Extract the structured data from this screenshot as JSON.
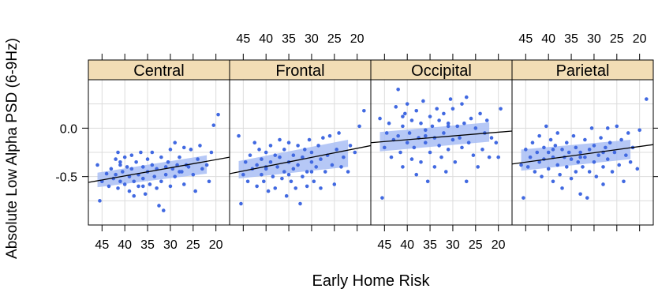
{
  "chart_data": {
    "type": "scatter",
    "xlabel": "Early Home Risk",
    "ylabel": "Absolute Low Alpha PSD (6-9Hz)",
    "xlim": [
      48,
      17
    ],
    "ylim": [
      -1.0,
      0.5
    ],
    "x_ticks": [
      "45",
      "40",
      "35",
      "30",
      "25",
      "20"
    ],
    "x_tick_values": [
      45,
      40,
      35,
      30,
      25,
      20
    ],
    "y_ticks": [
      "0.0",
      "-0.5"
    ],
    "y_tick_values": [
      0.0,
      -0.5
    ],
    "grid": true,
    "strip_color": "#F2DDB5",
    "point_color": "#4169E1",
    "band_color": "#A9BEF4",
    "line_color": "#000000",
    "panels": [
      {
        "name": "Central",
        "fit": {
          "x1": 48,
          "y1": -0.56,
          "x2": 17,
          "y2": -0.3
        },
        "band": {
          "x1": 46,
          "x2": 22,
          "upper_start": -0.46,
          "upper_end": -0.28,
          "lower_start": -0.61,
          "lower_end": -0.47
        },
        "points": [
          [
            46,
            -0.38
          ],
          [
            45.5,
            -0.75
          ],
          [
            45,
            -0.55
          ],
          [
            44,
            -0.47
          ],
          [
            43.5,
            -0.6
          ],
          [
            43,
            -0.42
          ],
          [
            42.5,
            -0.52
          ],
          [
            42,
            -0.32
          ],
          [
            42,
            -0.48
          ],
          [
            41.5,
            -0.25
          ],
          [
            41.5,
            -0.62
          ],
          [
            41,
            -0.38
          ],
          [
            41,
            -0.55
          ],
          [
            40.5,
            -0.45
          ],
          [
            40,
            -0.3
          ],
          [
            40,
            -0.58
          ],
          [
            39.5,
            -0.4
          ],
          [
            39,
            -0.65
          ],
          [
            39,
            -0.5
          ],
          [
            38.5,
            -0.28
          ],
          [
            38.5,
            -0.42
          ],
          [
            38,
            -0.7
          ],
          [
            38,
            -0.55
          ],
          [
            37.5,
            -0.35
          ],
          [
            37,
            -0.48
          ],
          [
            37,
            -0.6
          ],
          [
            36.5,
            -0.25
          ],
          [
            36,
            -0.4
          ],
          [
            36,
            -0.52
          ],
          [
            35.5,
            -0.68
          ],
          [
            35,
            -0.32
          ],
          [
            35,
            -0.45
          ],
          [
            34.5,
            -0.58
          ],
          [
            34,
            -0.38
          ],
          [
            34,
            -0.25
          ],
          [
            33.5,
            -0.5
          ],
          [
            33,
            -0.62
          ],
          [
            33,
            -0.42
          ],
          [
            32.5,
            -0.8
          ],
          [
            32,
            -0.3
          ],
          [
            32,
            -0.55
          ],
          [
            31.5,
            -0.85
          ],
          [
            31,
            -0.4
          ],
          [
            31,
            -0.48
          ],
          [
            30.5,
            -0.35
          ],
          [
            30,
            -0.22
          ],
          [
            30,
            -0.6
          ],
          [
            29.5,
            -0.42
          ],
          [
            29,
            -0.15
          ],
          [
            29,
            -0.5
          ],
          [
            28.5,
            -0.38
          ],
          [
            28,
            -0.3
          ],
          [
            27.5,
            -0.45
          ],
          [
            27,
            -0.2
          ],
          [
            27,
            -0.58
          ],
          [
            26.5,
            -0.38
          ],
          [
            26,
            -0.4
          ],
          [
            25.5,
            -0.22
          ],
          [
            25,
            -0.48
          ],
          [
            24.5,
            -0.65
          ],
          [
            24,
            -0.32
          ],
          [
            23.5,
            -0.18
          ],
          [
            23,
            -0.42
          ],
          [
            22,
            -0.38
          ],
          [
            21.5,
            -0.55
          ],
          [
            21,
            -0.25
          ],
          [
            20.5,
            0.03
          ],
          [
            19.5,
            0.14
          ],
          [
            41,
            -0.35
          ],
          [
            36,
            -0.6
          ],
          [
            28,
            -0.45
          ]
        ]
      },
      {
        "name": "Frontal",
        "fit": {
          "x1": 48,
          "y1": -0.47,
          "x2": 17,
          "y2": -0.18
        },
        "band": {
          "x1": 46,
          "x2": 22,
          "upper_start": -0.34,
          "upper_end": -0.12,
          "lower_start": -0.52,
          "lower_end": -0.4
        },
        "points": [
          [
            46,
            -0.08
          ],
          [
            45.5,
            -0.78
          ],
          [
            45,
            -0.48
          ],
          [
            44.5,
            -0.35
          ],
          [
            44,
            -0.55
          ],
          [
            43.5,
            -0.28
          ],
          [
            43,
            -0.42
          ],
          [
            42.5,
            -0.15
          ],
          [
            42,
            -0.6
          ],
          [
            42,
            -0.38
          ],
          [
            41.5,
            -0.22
          ],
          [
            41,
            -0.48
          ],
          [
            41,
            -0.32
          ],
          [
            40.5,
            -0.55
          ],
          [
            40,
            -0.25
          ],
          [
            40,
            -0.4
          ],
          [
            39.5,
            -0.65
          ],
          [
            39,
            -0.18
          ],
          [
            39,
            -0.35
          ],
          [
            38.5,
            -0.5
          ],
          [
            38,
            -0.28
          ],
          [
            38,
            -0.62
          ],
          [
            37.5,
            -0.4
          ],
          [
            37,
            -0.12
          ],
          [
            37,
            -0.3
          ],
          [
            36.5,
            -0.52
          ],
          [
            36,
            -0.22
          ],
          [
            36,
            -0.45
          ],
          [
            35.5,
            -0.7
          ],
          [
            35,
            -0.35
          ],
          [
            35,
            -0.15
          ],
          [
            34.5,
            -0.55
          ],
          [
            34,
            -0.28
          ],
          [
            34,
            -0.42
          ],
          [
            33.5,
            -0.62
          ],
          [
            33,
            -0.18
          ],
          [
            33,
            -0.38
          ],
          [
            32.5,
            -0.78
          ],
          [
            32,
            -0.3
          ],
          [
            32,
            -0.5
          ],
          [
            31.5,
            -0.22
          ],
          [
            31,
            -0.45
          ],
          [
            31,
            -0.6
          ],
          [
            30.5,
            -0.12
          ],
          [
            30,
            -0.35
          ],
          [
            30,
            -0.25
          ],
          [
            29.5,
            -0.55
          ],
          [
            29,
            -0.4
          ],
          [
            28.5,
            -0.18
          ],
          [
            28,
            -0.32
          ],
          [
            28,
            -0.62
          ],
          [
            27.5,
            -0.1
          ],
          [
            27,
            -0.45
          ],
          [
            26.5,
            -0.28
          ],
          [
            26,
            -0.08
          ],
          [
            25.5,
            -0.38
          ],
          [
            25,
            -0.58
          ],
          [
            24.5,
            -0.22
          ],
          [
            24,
            -0.05
          ],
          [
            23.5,
            -0.4
          ],
          [
            23,
            -0.3
          ],
          [
            22,
            -0.45
          ],
          [
            21.5,
            -0.18
          ],
          [
            20.5,
            -0.25
          ],
          [
            19.5,
            0.02
          ],
          [
            18.5,
            0.18
          ],
          [
            40,
            -0.42
          ],
          [
            35,
            -0.48
          ],
          [
            30,
            -0.45
          ]
        ]
      },
      {
        "name": "Occipital",
        "fit": {
          "x1": 48,
          "y1": -0.15,
          "x2": 17,
          "y2": -0.03
        },
        "band": {
          "x1": 46,
          "x2": 22,
          "upper_start": -0.04,
          "upper_end": 0.06,
          "lower_start": -0.24,
          "lower_end": -0.14
        },
        "points": [
          [
            46,
            0.1
          ],
          [
            45.5,
            -0.72
          ],
          [
            45,
            -0.2
          ],
          [
            44.5,
            -0.05
          ],
          [
            44,
            0.05
          ],
          [
            43.5,
            -0.3
          ],
          [
            43,
            -0.12
          ],
          [
            42.5,
            0.22
          ],
          [
            42,
            -0.08
          ],
          [
            42,
            0.4
          ],
          [
            41.5,
            -0.25
          ],
          [
            41,
            0.02
          ],
          [
            41,
            -0.4
          ],
          [
            40.5,
            0.15
          ],
          [
            40,
            -0.15
          ],
          [
            40,
            0.25
          ],
          [
            39.5,
            -0.05
          ],
          [
            39,
            -0.32
          ],
          [
            39,
            0.08
          ],
          [
            38.5,
            -0.2
          ],
          [
            38,
            0.18
          ],
          [
            38,
            -0.48
          ],
          [
            37.5,
            -0.1
          ],
          [
            37,
            0.05
          ],
          [
            37,
            -0.35
          ],
          [
            36.5,
            0.28
          ],
          [
            36,
            -0.15
          ],
          [
            36,
            -0.02
          ],
          [
            35.5,
            -0.55
          ],
          [
            35,
            0.12
          ],
          [
            35,
            -0.25
          ],
          [
            34.5,
            0.02
          ],
          [
            34,
            -0.4
          ],
          [
            34,
            -0.1
          ],
          [
            33.5,
            0.2
          ],
          [
            33,
            -0.18
          ],
          [
            33,
            0.08
          ],
          [
            32.5,
            -0.3
          ],
          [
            32,
            0.15
          ],
          [
            32,
            -0.05
          ],
          [
            31.5,
            -0.45
          ],
          [
            31,
            0.05
          ],
          [
            31,
            -0.22
          ],
          [
            30.5,
            0.3
          ],
          [
            30,
            -0.12
          ],
          [
            30,
            0.2
          ],
          [
            29.5,
            -0.35
          ],
          [
            29,
            0.02
          ],
          [
            28.5,
            -0.1
          ],
          [
            28,
            0.25
          ],
          [
            28,
            -0.2
          ],
          [
            27.5,
            0.05
          ],
          [
            27,
            -0.55
          ],
          [
            27,
            0.32
          ],
          [
            26.5,
            -0.15
          ],
          [
            26,
            0.1
          ],
          [
            25.5,
            -0.28
          ],
          [
            25,
            0.0
          ],
          [
            24.5,
            -0.4
          ],
          [
            24,
            0.15
          ],
          [
            23.5,
            -0.22
          ],
          [
            23,
            -0.05
          ],
          [
            22.5,
            0.08
          ],
          [
            22,
            -0.3
          ],
          [
            21.5,
            -0.1
          ],
          [
            20.5,
            -0.15
          ],
          [
            20,
            -0.3
          ],
          [
            19.5,
            0.2
          ],
          [
            41,
            0.12
          ],
          [
            36,
            -0.08
          ],
          [
            31,
            0.02
          ]
        ]
      },
      {
        "name": "Parietal",
        "fit": {
          "x1": 48,
          "y1": -0.37,
          "x2": 17,
          "y2": -0.17
        },
        "band": {
          "x1": 46,
          "x2": 22,
          "upper_start": -0.22,
          "upper_end": -0.12,
          "lower_start": -0.44,
          "lower_end": -0.32
        },
        "points": [
          [
            46,
            -0.38
          ],
          [
            45.5,
            -0.72
          ],
          [
            45,
            -0.22
          ],
          [
            44.5,
            -0.4
          ],
          [
            44,
            -0.3
          ],
          [
            43.5,
            -0.15
          ],
          [
            43,
            -0.45
          ],
          [
            42.5,
            -0.25
          ],
          [
            42,
            -0.35
          ],
          [
            42,
            -0.08
          ],
          [
            41.5,
            -0.5
          ],
          [
            41,
            -0.2
          ],
          [
            41,
            -0.32
          ],
          [
            40.5,
            0.02
          ],
          [
            40,
            -0.42
          ],
          [
            40,
            -0.25
          ],
          [
            39.5,
            -0.12
          ],
          [
            39,
            -0.55
          ],
          [
            39,
            -0.3
          ],
          [
            38.5,
            -0.18
          ],
          [
            38,
            -0.38
          ],
          [
            38,
            -0.05
          ],
          [
            37.5,
            -0.48
          ],
          [
            37,
            -0.22
          ],
          [
            37,
            -0.62
          ],
          [
            36.5,
            -0.3
          ],
          [
            36,
            -0.15
          ],
          [
            36,
            -0.4
          ],
          [
            35.5,
            -0.25
          ],
          [
            35,
            -0.52
          ],
          [
            35,
            -0.32
          ],
          [
            34.5,
            -0.08
          ],
          [
            34,
            -0.45
          ],
          [
            34,
            -0.2
          ],
          [
            33.5,
            -0.35
          ],
          [
            33,
            -0.68
          ],
          [
            33,
            -0.25
          ],
          [
            32.5,
            -0.4
          ],
          [
            32,
            -0.12
          ],
          [
            32,
            -0.3
          ],
          [
            31.5,
            -0.72
          ],
          [
            31,
            -0.22
          ],
          [
            31,
            -0.45
          ],
          [
            30.5,
            0.0
          ],
          [
            30,
            -0.35
          ],
          [
            30,
            -0.18
          ],
          [
            29.5,
            -0.5
          ],
          [
            29,
            -0.28
          ],
          [
            28.5,
            -0.1
          ],
          [
            28,
            -0.4
          ],
          [
            28,
            -0.58
          ],
          [
            27.5,
            -0.2
          ],
          [
            27,
            0.0
          ],
          [
            27,
            -0.32
          ],
          [
            26.5,
            -0.15
          ],
          [
            26,
            -0.45
          ],
          [
            25.5,
            -0.25
          ],
          [
            25,
            0.02
          ],
          [
            24.5,
            -0.38
          ],
          [
            24,
            -0.12
          ],
          [
            23.5,
            -0.55
          ],
          [
            23,
            -0.28
          ],
          [
            22.5,
            -0.05
          ],
          [
            22,
            -0.35
          ],
          [
            21.5,
            -0.2
          ],
          [
            20.5,
            -0.42
          ],
          [
            20,
            -0.02
          ],
          [
            18.5,
            0.3
          ],
          [
            39,
            -0.22
          ],
          [
            33,
            -0.3
          ],
          [
            28,
            -0.25
          ]
        ]
      }
    ]
  }
}
